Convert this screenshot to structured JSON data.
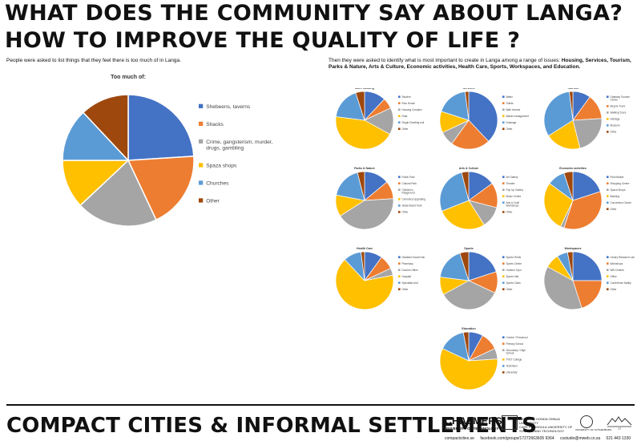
{
  "header": {
    "title1": "WHAT DOES THE COMMUNITY SAY ABOUT LANGA?",
    "title2": "HOW TO IMPROVE THE QUALITY OF LIFE ?"
  },
  "left": {
    "intro": "People were asked to list things that they feel there is too much of in Langa."
  },
  "right": {
    "intro_prefix": "Then they were asked to identify what is most important to create in Langa among a range of issues:",
    "intro_bold": "Housing, Services, Tourism, Parks & Nature, Arts & Culture, Economic activities, Health Care, Sports, Workspaces, and Education."
  },
  "colors": {
    "c1": "#4472C4",
    "c2": "#ED7D31",
    "c3": "#A5A5A5",
    "c4": "#FFC000",
    "c5": "#5B9BD5",
    "c6": "#9E480E",
    "c7": "#264478"
  },
  "footer": {
    "title": "COMPACT CITIES & INFORMAL SETTLEMENTS",
    "chalmers": "CHALMERS",
    "chalmers_sub": "UNIVERSITY OF TECHNOLOGY",
    "cput": "CAPE PENINSULA UNIVERSITY OF SCIENCE AND TECHNOLOGY",
    "cput_xhosa": "ARSHIDISI HONDA OHNUA UNIVERSITY",
    "got": "UNIVERSITY OF GOTHENBURG",
    "langa": "CS",
    "contacts": [
      "compactcities.se",
      "facebook.com/groups/17272663605 9364",
      "csstudio@mweb.co.za",
      "021 443 1330"
    ]
  },
  "chart_data": [
    {
      "type": "pie",
      "title": "Too much of:",
      "categories": [
        "Shebeens, taverns",
        "Shacks",
        "Crime, gangsterism, murder, drugs, gambling",
        "Spaza shops",
        "Churches",
        "Other"
      ],
      "values": [
        24,
        19,
        20,
        12,
        13,
        12
      ]
    },
    {
      "type": "pie",
      "title": "More housing",
      "categories": [
        "Student",
        "Row House",
        "Housing Complex",
        "Flats",
        "Single Dwelling unit",
        "Other"
      ],
      "values": [
        12,
        6,
        15,
        44,
        18,
        5
      ]
    },
    {
      "type": "pie",
      "title": "Services",
      "categories": [
        "Water",
        "Toilets",
        "Bath houses",
        "Waste management",
        "Drainage",
        "Other"
      ],
      "values": [
        38,
        22,
        8,
        12,
        18,
        2
      ]
    },
    {
      "type": "pie",
      "title": "Tourism",
      "categories": [
        "Gateway Tourism Centre",
        "Bicycle Tours",
        "Walking Tours",
        "Heritage",
        "Museum",
        "Other"
      ],
      "values": [
        10,
        14,
        22,
        20,
        32,
        2
      ]
    },
    {
      "type": "pie",
      "title": "Parks & Nature",
      "categories": [
        "Public Park",
        "Cultural Park",
        "Children's Playground",
        "Cemetery Upgrading",
        "Skate Board Park",
        "Other"
      ],
      "values": [
        14,
        10,
        42,
        12,
        18,
        4
      ]
    },
    {
      "type": "pie",
      "title": "Arts & Culture",
      "categories": [
        "Art Gallery",
        "Theatre",
        "Pop Up Gallery",
        "Music Centre",
        "Arts & Craft Workshops",
        "Other"
      ],
      "values": [
        15,
        14,
        12,
        28,
        27,
        4
      ]
    },
    {
      "type": "pie",
      "title": "Economic activities",
      "categories": [
        "Flea Market",
        "Shopping Centre",
        "Spaza Shops",
        "Banking",
        "Convention Centre",
        "Other"
      ],
      "values": [
        20,
        35,
        2,
        28,
        10,
        5
      ]
    },
    {
      "type": "pie",
      "title": "Health Care",
      "categories": [
        "Disabled Social Hub",
        "Pharmacy",
        "Doctors Office",
        "Hospital",
        "Specialist Unit",
        "Other"
      ],
      "values": [
        10,
        8,
        4,
        66,
        10,
        2
      ]
    },
    {
      "type": "pie",
      "title": "Sports",
      "categories": [
        "Sports Fields",
        "Sports Centre",
        "Outdoor Gym",
        "Sports Hall",
        "Sports Clubs",
        "Other"
      ],
      "values": [
        20,
        12,
        35,
        10,
        18,
        5
      ]
    },
    {
      "type": "pie",
      "title": "Workspaces",
      "categories": [
        "Library Research Lab",
        "Workshops",
        "Wifi Centres",
        "Office",
        "Conference facility",
        "Other"
      ],
      "values": [
        25,
        20,
        38,
        8,
        6,
        3
      ]
    },
    {
      "type": "pie",
      "title": "Education",
      "categories": [
        "Creche / Preschool",
        "Primary School",
        "Secondary / High School",
        "TVET College",
        "Technikon",
        "University"
      ],
      "values": [
        8,
        10,
        6,
        58,
        15,
        3
      ]
    }
  ]
}
